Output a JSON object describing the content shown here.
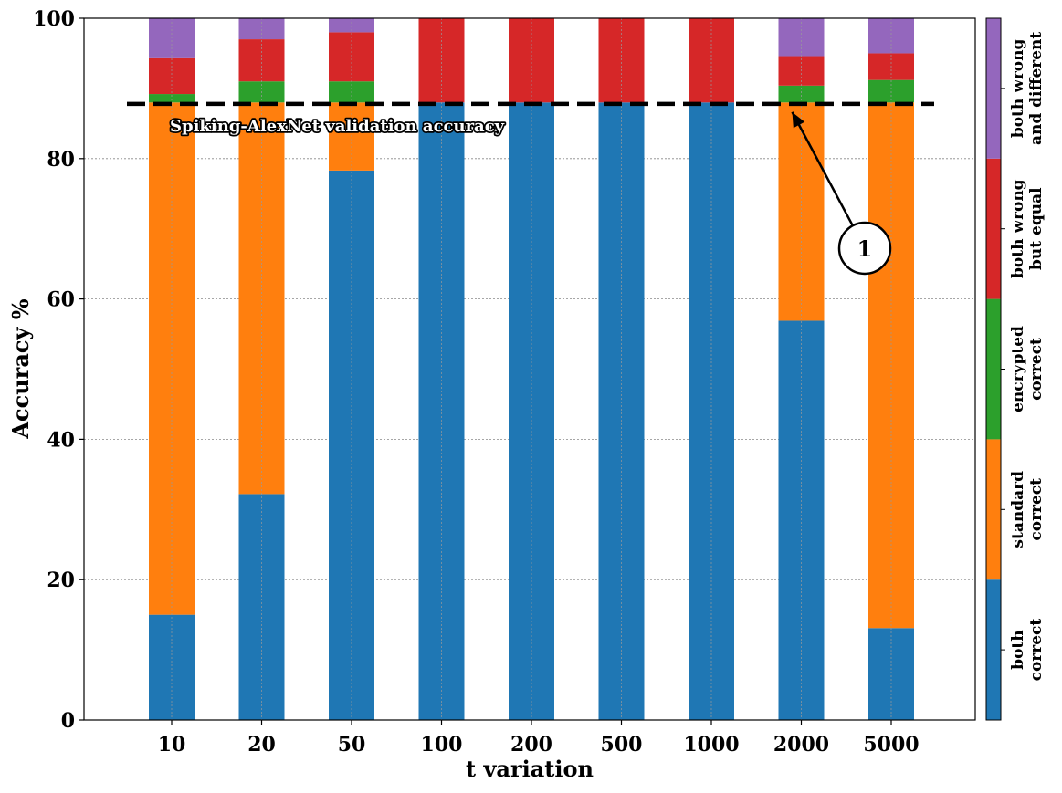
{
  "chart_data": {
    "type": "bar",
    "stacked": true,
    "title": "",
    "xlabel": "t variation",
    "ylabel": "Accuracy %",
    "ylim": [
      0,
      100
    ],
    "yticks": [
      0,
      20,
      40,
      60,
      80,
      100
    ],
    "grid": true,
    "categories": [
      "10",
      "20",
      "50",
      "100",
      "200",
      "500",
      "1000",
      "2000",
      "5000"
    ],
    "series": [
      {
        "name": "both correct",
        "color": "#1f77b4",
        "values": [
          15,
          32.2,
          78.3,
          88,
          88,
          88,
          88,
          56.9,
          13.1
        ]
      },
      {
        "name": "standard correct",
        "color": "#ff7f0e",
        "values": [
          73,
          55.8,
          9.7,
          0,
          0,
          0,
          0,
          31.1,
          74.9
        ]
      },
      {
        "name": "encrypted correct",
        "color": "#2ca02c",
        "values": [
          1.2,
          3,
          3,
          0,
          0,
          0,
          0,
          2.4,
          3.2
        ]
      },
      {
        "name": "both wrong but equal",
        "color": "#d62728",
        "values": [
          5.1,
          6,
          7,
          12,
          12,
          12,
          12,
          4.2,
          3.8
        ]
      },
      {
        "name": "both wrong and different",
        "color": "#9467bd",
        "values": [
          5.7,
          3,
          2,
          0,
          0,
          0,
          0,
          5.4,
          5
        ]
      }
    ],
    "reference_line": {
      "value": 87.8,
      "label": "Spiking-AlexNet validation accuracy"
    },
    "callout": {
      "label": "1",
      "target_category": "2000"
    },
    "colorbar": {
      "placement": "right",
      "labels": [
        [
          "both",
          "correct"
        ],
        [
          "standard",
          "correct"
        ],
        [
          "encrypted",
          "correct"
        ],
        [
          "both wrong",
          "but equal"
        ],
        [
          "both wrong",
          "and different"
        ]
      ]
    }
  }
}
